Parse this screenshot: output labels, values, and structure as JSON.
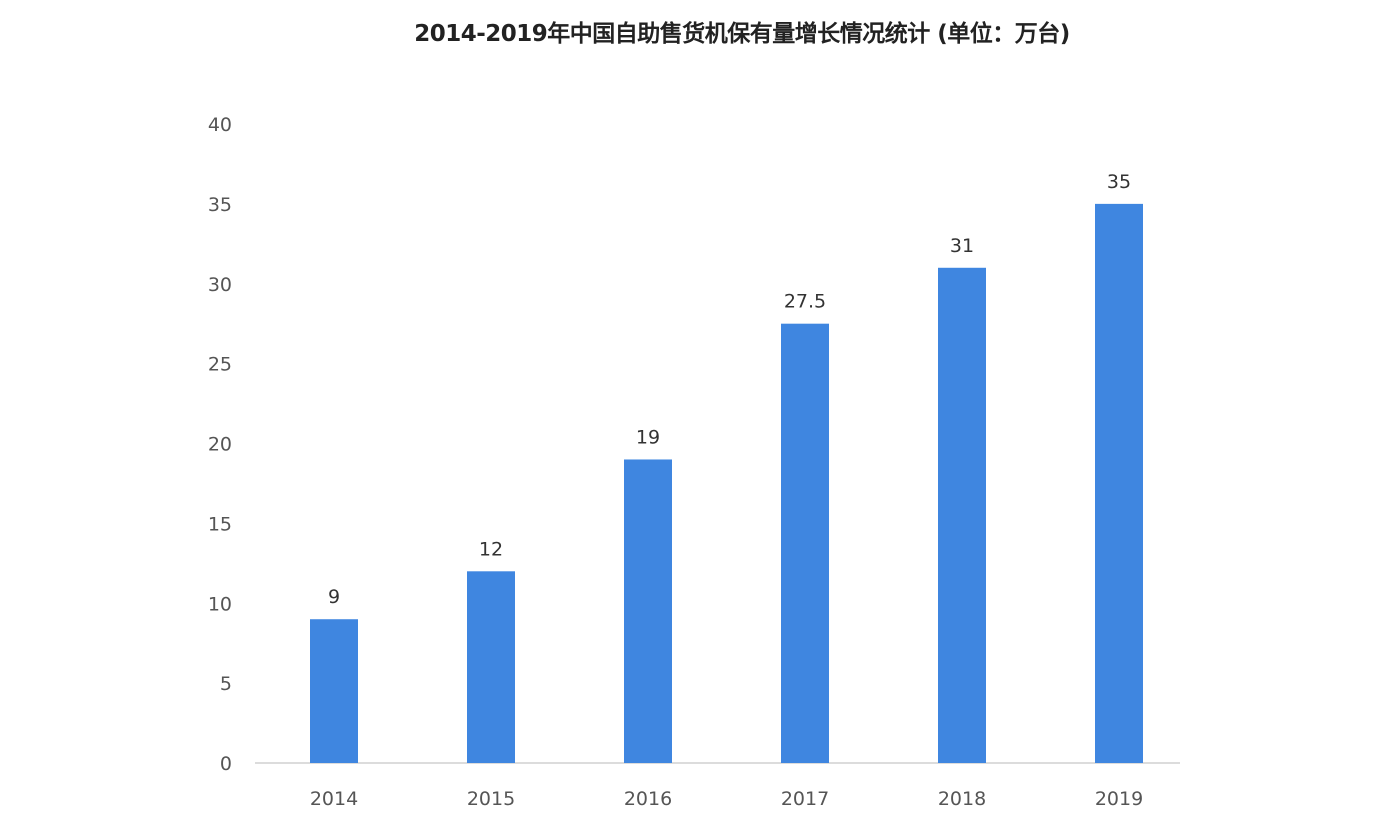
{
  "chart_data": {
    "type": "bar",
    "title": "2014-2019年中国自助售货机保有量增长情况统计 (单位：万台)",
    "categories": [
      "2014",
      "2015",
      "2016",
      "2017",
      "2018",
      "2019"
    ],
    "values": [
      9,
      12,
      19,
      27.5,
      31,
      35
    ],
    "data_labels": [
      "9",
      "12",
      "19",
      "27.5",
      "31",
      "35"
    ],
    "xlabel": "",
    "ylabel": "",
    "ylim": [
      0,
      40
    ],
    "yticks": [
      0,
      5,
      10,
      15,
      20,
      25,
      30,
      35,
      40
    ],
    "grid": false,
    "legend": "none",
    "bar_color": "#3f86e0"
  }
}
